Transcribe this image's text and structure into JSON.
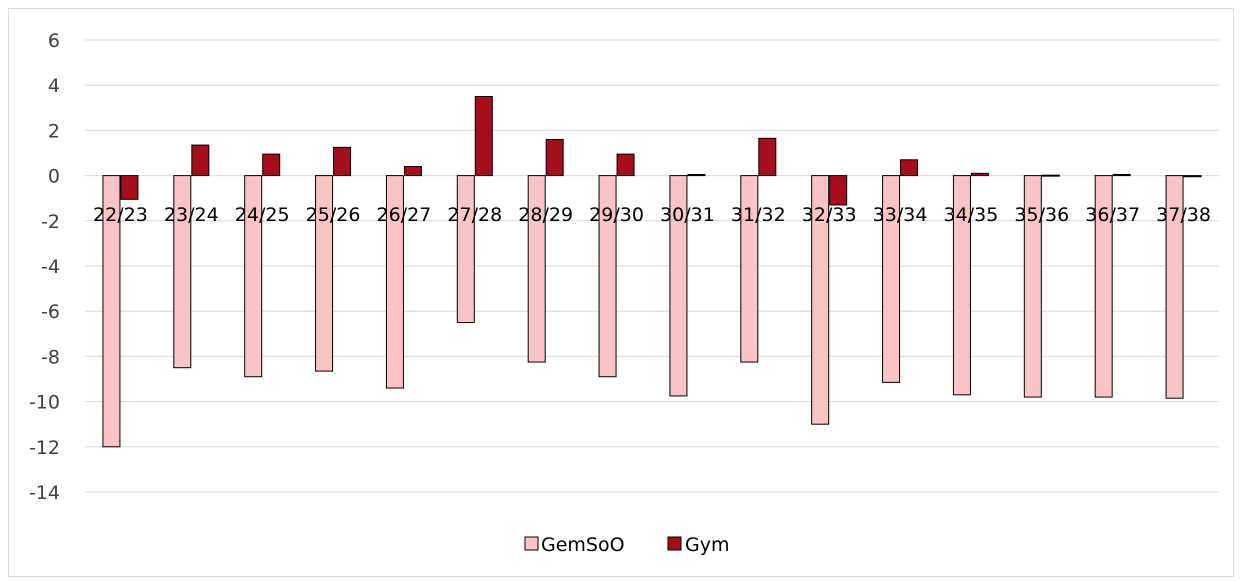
{
  "chart_data": {
    "type": "bar",
    "categories": [
      "22/23",
      "23/24",
      "24/25",
      "25/26",
      "26/27",
      "27/28",
      "28/29",
      "29/30",
      "30/31",
      "31/32",
      "32/33",
      "33/34",
      "34/35",
      "35/36",
      "36/37",
      "37/38"
    ],
    "series": [
      {
        "name": "GemSoO",
        "color": "#f8c4c6",
        "values": [
          -12.0,
          -8.5,
          -8.9,
          -8.65,
          -9.4,
          -6.5,
          -8.25,
          -8.9,
          -9.75,
          -8.25,
          -11.0,
          -9.15,
          -9.7,
          -9.8,
          -9.8,
          -9.85
        ]
      },
      {
        "name": "Gym",
        "color": "#a50f1c",
        "values": [
          -1.05,
          1.35,
          0.95,
          1.25,
          0.4,
          3.5,
          1.6,
          0.95,
          0.05,
          1.65,
          -1.3,
          0.7,
          0.1,
          0.02,
          0.05,
          -0.05
        ]
      }
    ],
    "ylim": [
      -14,
      6
    ],
    "yticks": [
      6,
      4,
      2,
      0,
      -2,
      -4,
      -6,
      -8,
      -10,
      -12,
      -14
    ],
    "grid": true,
    "legend": "bottom-center",
    "title": "",
    "xlabel": "",
    "ylabel": ""
  }
}
